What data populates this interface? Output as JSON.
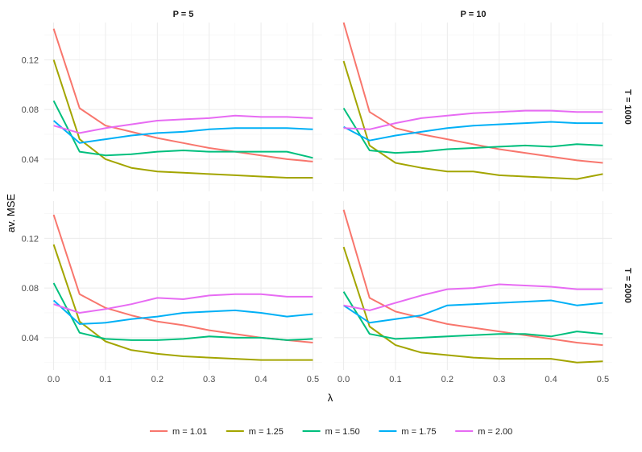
{
  "chart_data": {
    "type": "line",
    "xlabel": "λ",
    "ylabel": "av. MSE",
    "xlim": [
      -0.018,
      0.518
    ],
    "ylim": [
      0.014,
      0.15
    ],
    "x_ticks": [
      0.0,
      0.1,
      0.2,
      0.3,
      0.4,
      0.5
    ],
    "x_tick_labels": [
      "0.0",
      "0.1",
      "0.2",
      "0.3",
      "0.4",
      "0.5"
    ],
    "y_ticks": [
      0.04,
      0.08,
      0.12
    ],
    "y_tick_labels": [
      "0.04",
      "0.08",
      "0.12"
    ],
    "legend_position": "bottom",
    "grid": true,
    "col_labels": [
      "P = 5",
      "P = 10"
    ],
    "row_labels": [
      "T = 1000",
      "T = 2000"
    ],
    "x": [
      0.0,
      0.05,
      0.1,
      0.15,
      0.2,
      0.25,
      0.3,
      0.35,
      0.4,
      0.45,
      0.5
    ],
    "series_meta": [
      {
        "name": "m = 1.01",
        "color": "#F8766D"
      },
      {
        "name": "m = 1.25",
        "color": "#A3A500"
      },
      {
        "name": "m = 1.50",
        "color": "#00BF7D"
      },
      {
        "name": "m = 1.75",
        "color": "#00B0F6"
      },
      {
        "name": "m = 2.00",
        "color": "#E76BF3"
      }
    ],
    "panels": [
      {
        "col": 0,
        "row": 0,
        "series": [
          {
            "name": "m = 1.01",
            "values": [
              0.145,
              0.081,
              0.067,
              0.062,
              0.057,
              0.053,
              0.049,
              0.046,
              0.043,
              0.04,
              0.038
            ]
          },
          {
            "name": "m = 1.25",
            "values": [
              0.12,
              0.056,
              0.04,
              0.033,
              0.03,
              0.029,
              0.028,
              0.027,
              0.026,
              0.025,
              0.025
            ]
          },
          {
            "name": "m = 1.50",
            "values": [
              0.087,
              0.046,
              0.043,
              0.044,
              0.046,
              0.047,
              0.046,
              0.046,
              0.046,
              0.046,
              0.041
            ]
          },
          {
            "name": "m = 1.75",
            "values": [
              0.071,
              0.053,
              0.056,
              0.059,
              0.061,
              0.062,
              0.064,
              0.065,
              0.065,
              0.065,
              0.064
            ]
          },
          {
            "name": "m = 2.00",
            "values": [
              0.067,
              0.061,
              0.065,
              0.068,
              0.071,
              0.072,
              0.073,
              0.075,
              0.074,
              0.074,
              0.073
            ]
          }
        ]
      },
      {
        "col": 1,
        "row": 0,
        "series": [
          {
            "name": "m = 1.01",
            "values": [
              0.15,
              0.078,
              0.065,
              0.06,
              0.056,
              0.052,
              0.048,
              0.045,
              0.042,
              0.039,
              0.037
            ]
          },
          {
            "name": "m = 1.25",
            "values": [
              0.119,
              0.051,
              0.037,
              0.033,
              0.03,
              0.03,
              0.027,
              0.026,
              0.025,
              0.024,
              0.028
            ]
          },
          {
            "name": "m = 1.50",
            "values": [
              0.081,
              0.047,
              0.045,
              0.046,
              0.048,
              0.049,
              0.05,
              0.051,
              0.05,
              0.052,
              0.051
            ]
          },
          {
            "name": "m = 1.75",
            "values": [
              0.066,
              0.055,
              0.059,
              0.062,
              0.065,
              0.067,
              0.068,
              0.069,
              0.07,
              0.069,
              0.069
            ]
          },
          {
            "name": "m = 2.00",
            "values": [
              0.065,
              0.064,
              0.069,
              0.073,
              0.075,
              0.077,
              0.078,
              0.079,
              0.079,
              0.078,
              0.078
            ]
          }
        ]
      },
      {
        "col": 0,
        "row": 1,
        "series": [
          {
            "name": "m = 1.01",
            "values": [
              0.139,
              0.075,
              0.064,
              0.058,
              0.053,
              0.05,
              0.046,
              0.043,
              0.04,
              0.038,
              0.036
            ]
          },
          {
            "name": "m = 1.25",
            "values": [
              0.115,
              0.053,
              0.037,
              0.03,
              0.027,
              0.025,
              0.024,
              0.023,
              0.022,
              0.022,
              0.022
            ]
          },
          {
            "name": "m = 1.50",
            "values": [
              0.084,
              0.044,
              0.039,
              0.038,
              0.038,
              0.039,
              0.041,
              0.04,
              0.04,
              0.038,
              0.039
            ]
          },
          {
            "name": "m = 1.75",
            "values": [
              0.07,
              0.051,
              0.052,
              0.055,
              0.057,
              0.06,
              0.061,
              0.062,
              0.06,
              0.057,
              0.059
            ]
          },
          {
            "name": "m = 2.00",
            "values": [
              0.067,
              0.06,
              0.063,
              0.067,
              0.072,
              0.071,
              0.074,
              0.075,
              0.075,
              0.073,
              0.073
            ]
          }
        ]
      },
      {
        "col": 1,
        "row": 1,
        "series": [
          {
            "name": "m = 1.01",
            "values": [
              0.143,
              0.072,
              0.061,
              0.056,
              0.051,
              0.048,
              0.045,
              0.042,
              0.039,
              0.036,
              0.034
            ]
          },
          {
            "name": "m = 1.25",
            "values": [
              0.113,
              0.049,
              0.034,
              0.028,
              0.026,
              0.024,
              0.023,
              0.023,
              0.023,
              0.02,
              0.021
            ]
          },
          {
            "name": "m = 1.50",
            "values": [
              0.077,
              0.043,
              0.039,
              0.04,
              0.041,
              0.042,
              0.043,
              0.043,
              0.041,
              0.045,
              0.043
            ]
          },
          {
            "name": "m = 1.75",
            "values": [
              0.066,
              0.052,
              0.055,
              0.058,
              0.066,
              0.067,
              0.068,
              0.069,
              0.07,
              0.066,
              0.068
            ]
          },
          {
            "name": "m = 2.00",
            "values": [
              0.066,
              0.062,
              0.068,
              0.074,
              0.079,
              0.08,
              0.083,
              0.082,
              0.081,
              0.079,
              0.079
            ]
          }
        ]
      }
    ]
  }
}
